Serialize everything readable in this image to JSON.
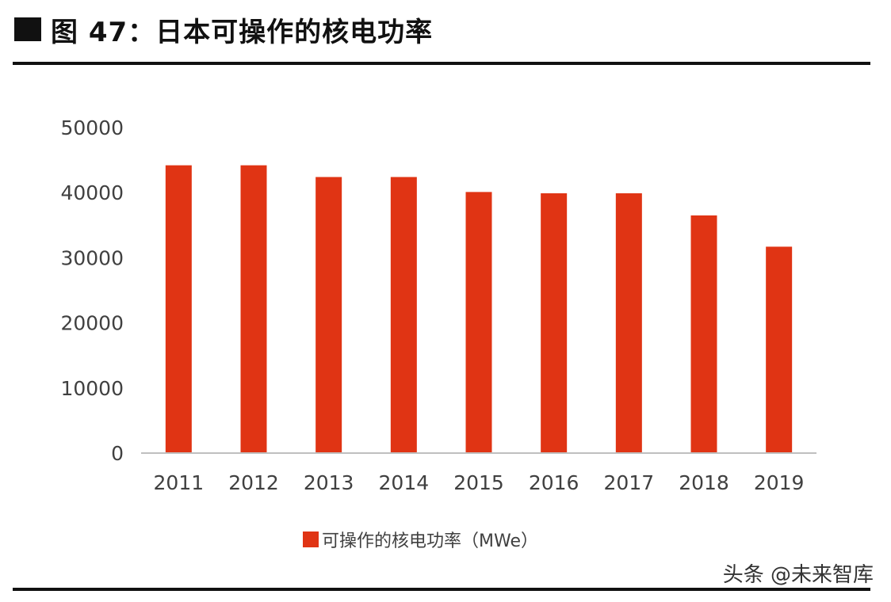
{
  "figure": {
    "title": "图 47：日本可操作的核电功率"
  },
  "chart_data": {
    "type": "bar",
    "categories": [
      "2011",
      "2012",
      "2013",
      "2014",
      "2015",
      "2016",
      "2017",
      "2018",
      "2019"
    ],
    "series": [
      {
        "name": "可操作的核电功率（MWe）",
        "values": [
          44200,
          44200,
          42400,
          42400,
          40100,
          39900,
          39900,
          36500,
          31700
        ],
        "color": "#e03414"
      }
    ],
    "yticks": [
      "0",
      "10000",
      "20000",
      "30000",
      "40000",
      "50000"
    ],
    "ylim": [
      0,
      50000
    ],
    "grid": false,
    "legend": "bottom-center"
  },
  "watermark": "头条 @未来智库"
}
